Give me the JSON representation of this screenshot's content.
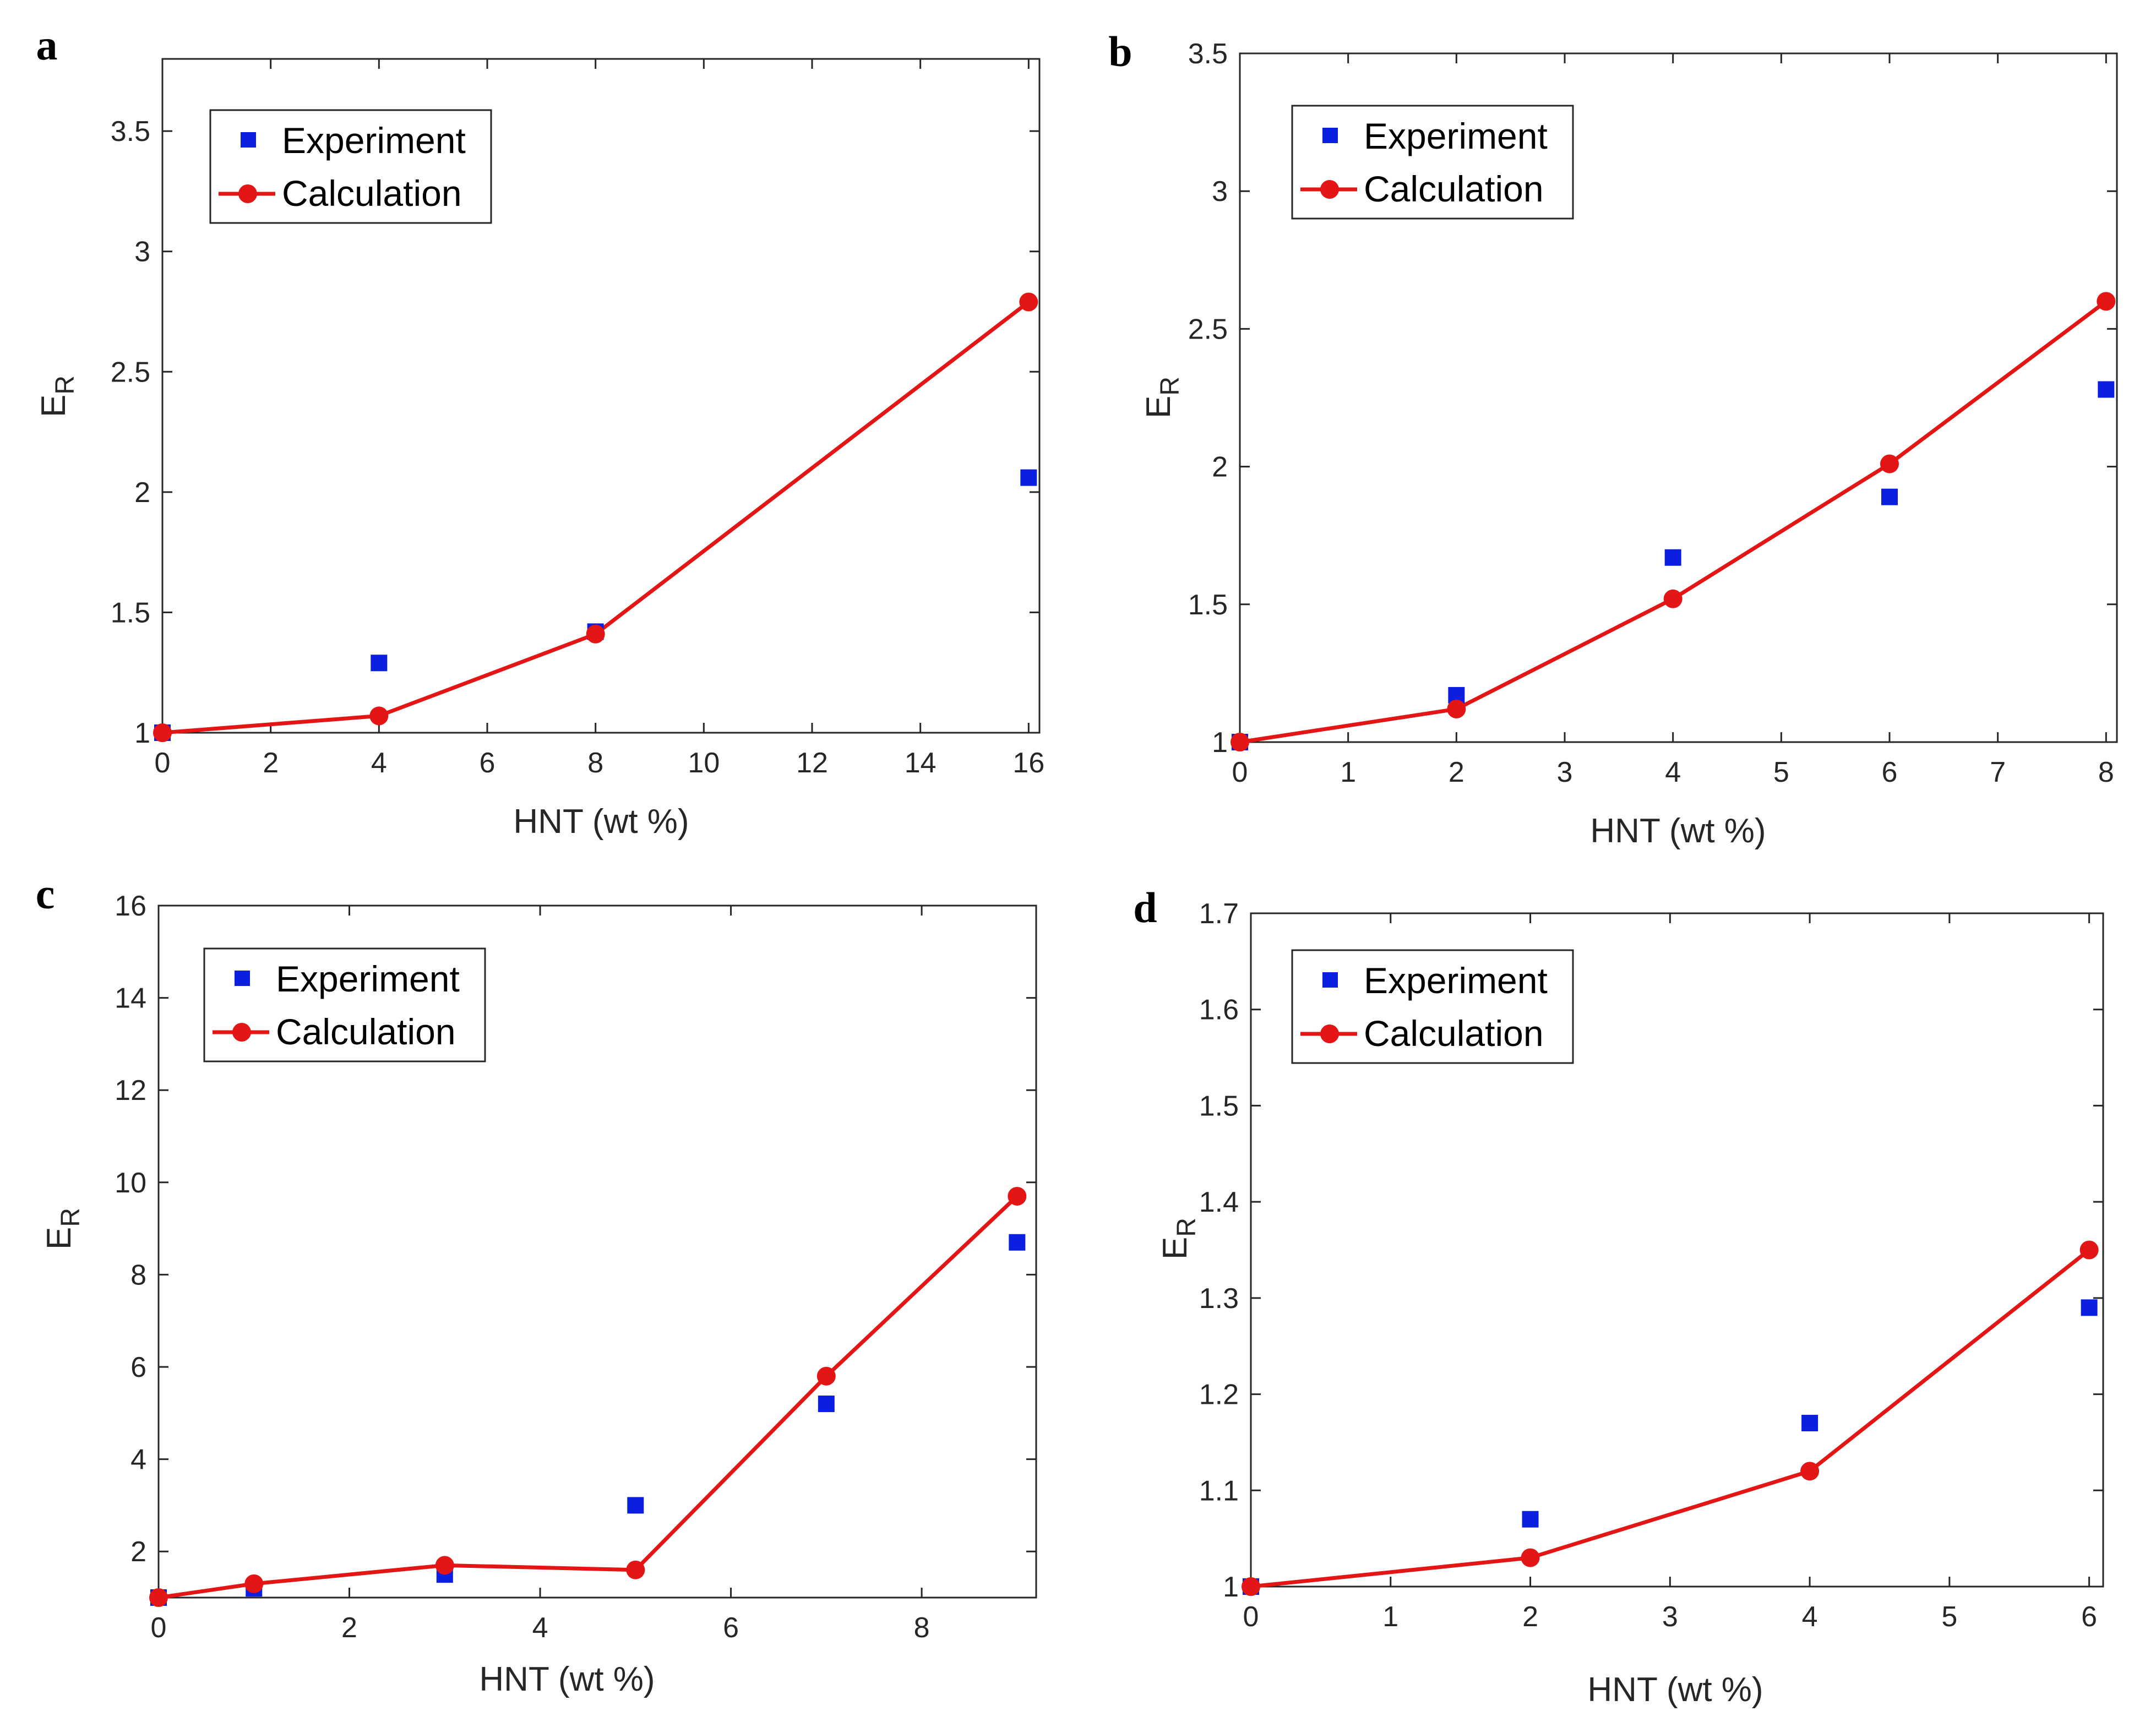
{
  "colors": {
    "experiment": "#0a1fe0",
    "calculation": "#e31515",
    "axis": "#262626"
  },
  "chart_data": [
    {
      "panel_label": "a",
      "type": "line",
      "xlabel": "HNT (wt %)",
      "ylabel": "E",
      "ylabel_sub": "R",
      "xlim": [
        0,
        16.2
      ],
      "ylim": [
        1,
        3.8
      ],
      "xticks": [
        0,
        2,
        4,
        6,
        8,
        10,
        12,
        14,
        16
      ],
      "xtick_labels": [
        "0",
        "2",
        "4",
        "6",
        "8",
        "10",
        "12",
        "14",
        "16"
      ],
      "yticks": [
        1,
        1.5,
        2,
        2.5,
        3,
        3.5
      ],
      "ytick_labels": [
        "1",
        "1.5",
        "2",
        "2.5",
        "3",
        "3.5"
      ],
      "legend": [
        "Experiment",
        "Calculation"
      ],
      "series": [
        {
          "name": "Experiment",
          "marker": "square",
          "x": [
            0,
            4,
            8,
            16
          ],
          "y": [
            1.0,
            1.29,
            1.42,
            2.06
          ]
        },
        {
          "name": "Calculation",
          "marker": "circle",
          "x": [
            0,
            4,
            8,
            16
          ],
          "y": [
            1.0,
            1.07,
            1.41,
            2.79
          ]
        }
      ]
    },
    {
      "panel_label": "b",
      "type": "line",
      "xlabel": "HNT (wt %)",
      "ylabel": "E",
      "ylabel_sub": "R",
      "xlim": [
        0,
        8.1
      ],
      "ylim": [
        1,
        3.5
      ],
      "xticks": [
        0,
        1,
        2,
        3,
        4,
        5,
        6,
        7,
        8
      ],
      "xtick_labels": [
        "0",
        "1",
        "2",
        "3",
        "4",
        "5",
        "6",
        "7",
        "8"
      ],
      "yticks": [
        1,
        1.5,
        2,
        2.5,
        3,
        3.5
      ],
      "ytick_labels": [
        "1",
        "1.5",
        "2",
        "2.5",
        "3",
        "3.5"
      ],
      "legend": [
        "Experiment",
        "Calculation"
      ],
      "series": [
        {
          "name": "Experiment",
          "marker": "square",
          "x": [
            0,
            2,
            4,
            6,
            8
          ],
          "y": [
            1.0,
            1.17,
            1.67,
            1.89,
            2.28
          ]
        },
        {
          "name": "Calculation",
          "marker": "circle",
          "x": [
            0,
            2,
            4,
            6,
            8
          ],
          "y": [
            1.0,
            1.12,
            1.52,
            2.01,
            2.6
          ]
        }
      ]
    },
    {
      "panel_label": "c",
      "type": "line",
      "xlabel": "HNT (wt %)",
      "ylabel": "E",
      "ylabel_sub": "R",
      "xlim": [
        0,
        9.2
      ],
      "ylim": [
        1,
        16
      ],
      "xticks": [
        0,
        2,
        4,
        6,
        8
      ],
      "xtick_labels": [
        "0",
        "2",
        "4",
        "6",
        "8"
      ],
      "yticks": [
        2,
        4,
        6,
        8,
        10,
        12,
        14,
        16
      ],
      "ytick_labels": [
        "2",
        "4",
        "6",
        "8",
        "10",
        "12",
        "14",
        "16"
      ],
      "legend": [
        "Experiment",
        "Calculation"
      ],
      "series": [
        {
          "name": "Experiment",
          "marker": "square",
          "x": [
            0,
            1,
            3,
            5,
            7,
            9
          ],
          "y": [
            1.0,
            1.2,
            1.5,
            3.0,
            5.2,
            8.7
          ]
        },
        {
          "name": "Calculation",
          "marker": "circle",
          "x": [
            0,
            1,
            3,
            5,
            7,
            9
          ],
          "y": [
            1.0,
            1.3,
            1.7,
            1.6,
            5.8,
            9.7
          ]
        }
      ]
    },
    {
      "panel_label": "d",
      "type": "line",
      "xlabel": "HNT (wt %)",
      "ylabel": "E",
      "ylabel_sub": "R",
      "xlim": [
        0,
        6.1
      ],
      "ylim": [
        1,
        1.7
      ],
      "xticks": [
        0,
        1,
        2,
        3,
        4,
        5,
        6
      ],
      "xtick_labels": [
        "0",
        "1",
        "2",
        "3",
        "4",
        "5",
        "6"
      ],
      "yticks": [
        1,
        1.1,
        1.2,
        1.3,
        1.4,
        1.5,
        1.6,
        1.7
      ],
      "ytick_labels": [
        "1",
        "1.1",
        "1.2",
        "1.3",
        "1.4",
        "1.5",
        "1.6",
        "1.7"
      ],
      "legend": [
        "Experiment",
        "Calculation"
      ],
      "series": [
        {
          "name": "Experiment",
          "marker": "square",
          "x": [
            0,
            2,
            4,
            6
          ],
          "y": [
            1.0,
            1.07,
            1.17,
            1.29
          ]
        },
        {
          "name": "Calculation",
          "marker": "circle",
          "x": [
            0,
            2,
            4,
            6
          ],
          "y": [
            1.0,
            1.03,
            1.12,
            1.35
          ]
        }
      ]
    }
  ]
}
